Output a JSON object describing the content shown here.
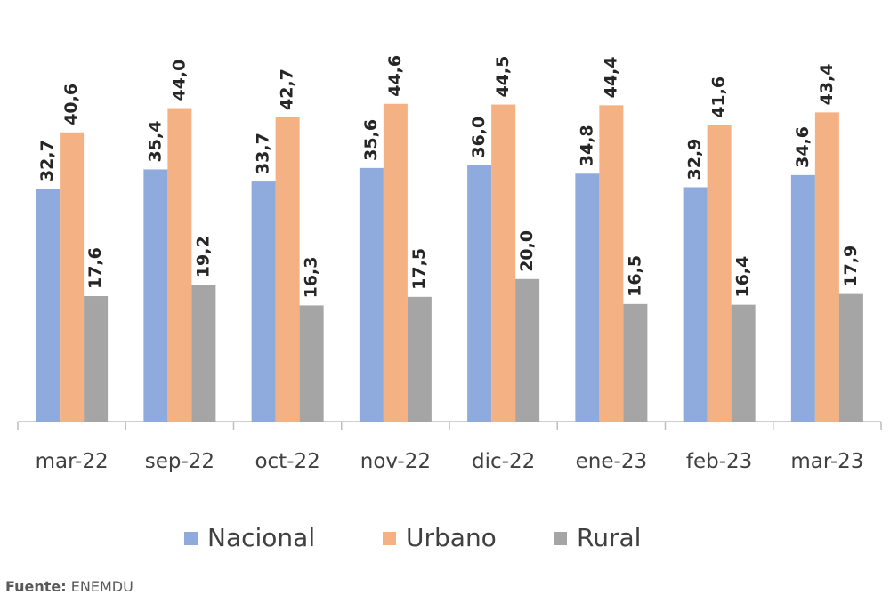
{
  "chart_data": {
    "type": "bar",
    "categories": [
      "mar-22",
      "sep-22",
      "oct-22",
      "nov-22",
      "dic-22",
      "ene-23",
      "feb-23",
      "mar-23"
    ],
    "series": [
      {
        "name": "Nacional",
        "color": "#8faadc",
        "values": [
          32.7,
          35.4,
          33.7,
          35.6,
          36.0,
          34.8,
          32.9,
          34.6
        ],
        "value_labels": [
          "32,7",
          "35,4",
          "33,7",
          "35,6",
          "36,0",
          "34,8",
          "32,9",
          "34,6"
        ]
      },
      {
        "name": "Urbano",
        "color": "#f4b183",
        "values": [
          40.6,
          44.0,
          42.7,
          44.6,
          44.5,
          44.4,
          41.6,
          43.4
        ],
        "value_labels": [
          "40,6",
          "44,0",
          "42,7",
          "44,6",
          "44,5",
          "44,4",
          "41,6",
          "43,4"
        ]
      },
      {
        "name": "Rural",
        "color": "#a5a5a5",
        "values": [
          17.6,
          19.2,
          16.3,
          17.5,
          20.0,
          16.5,
          16.4,
          17.9
        ],
        "value_labels": [
          "17,6",
          "19,2",
          "16,3",
          "17,5",
          "20,0",
          "16,5",
          "16,4",
          "17,9"
        ]
      }
    ]
  },
  "source": {
    "label": "Fuente:",
    "text": "ENEMDU"
  }
}
